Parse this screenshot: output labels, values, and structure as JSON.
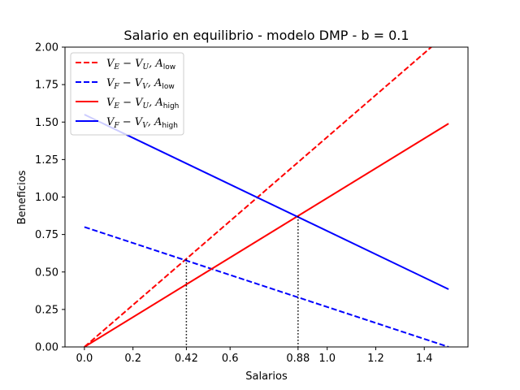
{
  "chart_data": {
    "type": "line",
    "title": "Salario en equilibrio - modelo DMP - b = 0.1",
    "xlabel": "Salarios",
    "ylabel": "Beneficios",
    "xlim": [
      -0.08,
      1.58
    ],
    "ylim": [
      0,
      2.0
    ],
    "grid": false,
    "legend_position": "top-left",
    "x_ticks": [
      0.0,
      0.2,
      0.42,
      0.6,
      0.88,
      1.0,
      1.2,
      1.4
    ],
    "x_tick_labels": [
      "0.0",
      "0.2",
      "0.42",
      "0.6",
      "0.88",
      "1.0",
      "1.2",
      "1.4"
    ],
    "y_ticks": [
      0,
      0.25,
      0.5,
      0.75,
      1.0,
      1.25,
      1.5,
      1.75,
      2.0
    ],
    "y_tick_labels": [
      "0.00",
      "0.25",
      "0.50",
      "0.75",
      "1.00",
      "1.25",
      "1.50",
      "1.75",
      "2.00"
    ],
    "series": [
      {
        "name": "V_E - V_U, A_low",
        "color": "#ff0000",
        "dash": true,
        "x": [
          0.0,
          1.5
        ],
        "y": [
          0.0,
          2.1
        ]
      },
      {
        "name": "V_F - V_V, A_low",
        "color": "#0000ff",
        "dash": true,
        "x": [
          0.0,
          1.5
        ],
        "y": [
          0.8,
          0.0
        ]
      },
      {
        "name": "V_E - V_U, A_high",
        "color": "#ff0000",
        "dash": false,
        "x": [
          0.0,
          1.5
        ],
        "y": [
          0.0,
          1.49
        ]
      },
      {
        "name": "V_F - V_V, A_high",
        "color": "#0000ff",
        "dash": false,
        "x": [
          0.0,
          1.5
        ],
        "y": [
          1.55,
          0.385
        ]
      }
    ],
    "vlines": [
      {
        "x": 0.42,
        "y": 0.585
      },
      {
        "x": 0.88,
        "y": 0.872
      }
    ]
  }
}
